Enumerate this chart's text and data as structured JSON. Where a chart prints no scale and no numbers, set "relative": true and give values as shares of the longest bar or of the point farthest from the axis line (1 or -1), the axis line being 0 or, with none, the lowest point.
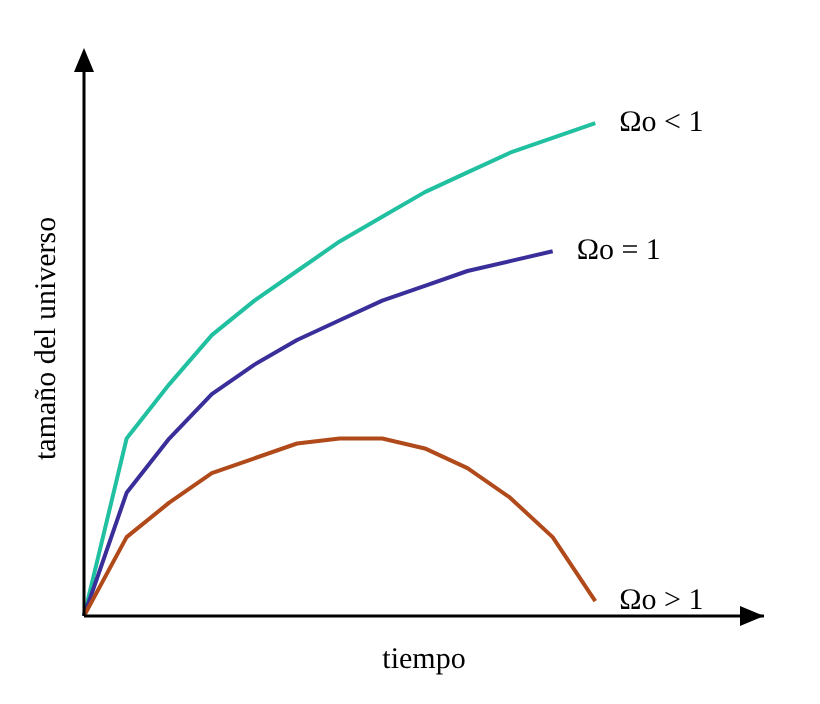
{
  "chart_data": {
    "type": "line",
    "relative": true,
    "xlabel": "tiempo",
    "ylabel": "tamaño del universo",
    "marker": "none",
    "line_style": "solid",
    "categories": [
      null,
      null,
      null,
      null,
      null,
      null,
      null,
      null,
      null,
      null,
      null,
      null,
      null
    ],
    "series": [
      {
        "name": "Ωo < 1",
        "color": "#20c0a0",
        "values": [
          0,
          0.36,
          0.47,
          0.57,
          0.64,
          0.7,
          0.76,
          0.81,
          0.86,
          0.9,
          0.94,
          0.97,
          1
        ]
      },
      {
        "name": "Ωo = 1",
        "color": "#3a2f9a",
        "values": [
          0,
          0.25,
          0.36,
          0.45,
          0.51,
          0.56,
          0.6,
          0.64,
          0.67,
          0.7,
          0.72,
          0.74,
          null
        ]
      },
      {
        "name": "Ωo > 1",
        "color": "#b04a1a",
        "values": [
          0,
          0.16,
          0.23,
          0.29,
          0.32,
          0.35,
          0.36,
          0.36,
          0.34,
          0.3,
          0.24,
          0.16,
          0.03
        ]
      }
    ]
  }
}
